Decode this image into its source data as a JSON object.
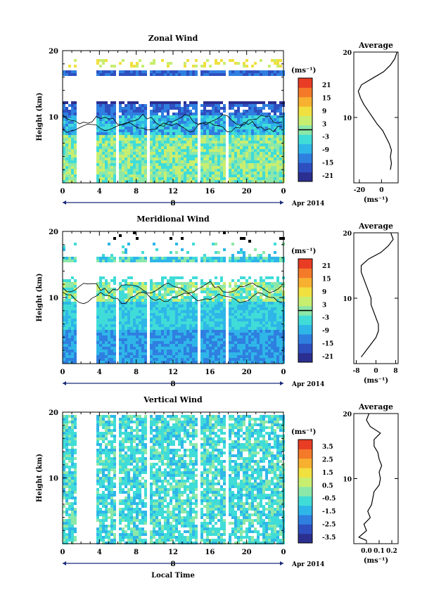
{
  "chart_data": [
    {
      "type": "heatmap",
      "title": "Zonal Wind",
      "ylabel": "Height (km)",
      "ylim": [
        0,
        20
      ],
      "yticks": [
        {
          "v": 10,
          "label": "10"
        },
        {
          "v": 20,
          "label": "20"
        }
      ],
      "xlim": [
        0,
        24
      ],
      "xticks": [
        "0",
        "4",
        "8",
        "12",
        "16",
        "20",
        "0"
      ],
      "date_day": "8",
      "date_label": "Apr 2014",
      "colorbar": {
        "unit": "(ms⁻¹)",
        "range": [
          -24,
          24
        ],
        "ticks": [
          "21",
          "15",
          "9",
          "3",
          "-3",
          "-9",
          "-15",
          "-21"
        ],
        "contour_value": 0
      },
      "average": {
        "title": "Average",
        "xlabel": "(ms⁻¹)",
        "xlim": [
          -25,
          15
        ],
        "xticks": [
          "-20",
          "0"
        ],
        "xtick_values": [
          -20,
          0
        ],
        "yticks": [
          "10",
          "20"
        ],
        "profile": [
          {
            "h": 2,
            "v": 8
          },
          {
            "h": 3,
            "v": 9
          },
          {
            "h": 4,
            "v": 8
          },
          {
            "h": 5,
            "v": 9
          },
          {
            "h": 6,
            "v": 7
          },
          {
            "h": 7,
            "v": 4
          },
          {
            "h": 8,
            "v": 1
          },
          {
            "h": 9,
            "v": -4
          },
          {
            "h": 10,
            "v": -8
          },
          {
            "h": 11,
            "v": -12
          },
          {
            "h": 12,
            "v": -16
          },
          {
            "h": 13,
            "v": -19
          },
          {
            "h": 14,
            "v": -21
          },
          {
            "h": 15,
            "v": -18
          },
          {
            "h": 16,
            "v": -8
          },
          {
            "h": 17,
            "v": 2
          },
          {
            "h": 18,
            "v": 8
          },
          {
            "h": 19,
            "v": 12
          },
          {
            "h": 20,
            "v": 14
          }
        ]
      }
    },
    {
      "type": "heatmap",
      "title": "Meridional Wind",
      "ylabel": "Height (km)",
      "ylim": [
        0,
        20
      ],
      "yticks": [
        {
          "v": 10,
          "label": "10"
        },
        {
          "v": 20,
          "label": "20"
        }
      ],
      "xlim": [
        0,
        24
      ],
      "xticks": [
        "0",
        "4",
        "8",
        "12",
        "16",
        "20",
        "0"
      ],
      "date_day": "8",
      "date_label": "Apr 2014",
      "colorbar": {
        "unit": "(ms⁻¹)",
        "range": [
          -24,
          24
        ],
        "ticks": [
          "21",
          "15",
          "9",
          "3",
          "-3",
          "-9",
          "-15",
          "-21"
        ],
        "contour_value": 0
      },
      "average": {
        "title": "Average",
        "xlabel": "(ms⁻¹)",
        "xlim": [
          -9,
          9
        ],
        "xticks": [
          "-8",
          "0",
          "8"
        ],
        "xtick_values": [
          -8,
          0,
          8
        ],
        "yticks": [
          "10",
          "20"
        ],
        "profile": [
          {
            "h": 1,
            "v": -6
          },
          {
            "h": 2,
            "v": -4
          },
          {
            "h": 3,
            "v": -2
          },
          {
            "h": 4,
            "v": 0
          },
          {
            "h": 5,
            "v": 1
          },
          {
            "h": 6,
            "v": 1
          },
          {
            "h": 7,
            "v": 0
          },
          {
            "h": 8,
            "v": -1
          },
          {
            "h": 9,
            "v": -2
          },
          {
            "h": 10,
            "v": -2
          },
          {
            "h": 11,
            "v": -3
          },
          {
            "h": 12,
            "v": -4
          },
          {
            "h": 13,
            "v": -5
          },
          {
            "h": 14,
            "v": -6
          },
          {
            "h": 15,
            "v": -6
          },
          {
            "h": 16,
            "v": -3
          },
          {
            "h": 17,
            "v": 2
          },
          {
            "h": 18,
            "v": 5
          },
          {
            "h": 19,
            "v": 7
          },
          {
            "h": 20,
            "v": 6
          }
        ]
      }
    },
    {
      "type": "heatmap",
      "title": "Vertical Wind",
      "ylabel": "Height (km)",
      "xlabel": "Local Time",
      "ylim": [
        0,
        20
      ],
      "yticks": [
        {
          "v": 10,
          "label": "10"
        },
        {
          "v": 20,
          "label": "20"
        }
      ],
      "xlim": [
        0,
        24
      ],
      "xticks": [
        "0",
        "4",
        "8",
        "12",
        "16",
        "20",
        "0"
      ],
      "date_day": "8",
      "date_label": "Apr 2014",
      "colorbar": {
        "unit": "(ms⁻¹)",
        "range": [
          -4,
          4
        ],
        "ticks": [
          "3.5",
          "2.5",
          "1.5",
          "0.5",
          "-0.5",
          "-1.5",
          "-2.5",
          "-3.5"
        ]
      },
      "average": {
        "title": "Average",
        "xlabel": "(ms⁻¹)",
        "xlim": [
          -0.1,
          0.25
        ],
        "xticks": [
          "0.0",
          "0.1",
          "0.2"
        ],
        "xtick_values": [
          0.0,
          0.1,
          0.2
        ],
        "yticks": [
          "10",
          "20"
        ],
        "profile": [
          {
            "h": 0.5,
            "v": 0.0
          },
          {
            "h": 1,
            "v": -0.06
          },
          {
            "h": 2,
            "v": 0.0
          },
          {
            "h": 3,
            "v": -0.02
          },
          {
            "h": 4,
            "v": 0.03
          },
          {
            "h": 5,
            "v": 0.01
          },
          {
            "h": 6,
            "v": 0.04
          },
          {
            "h": 7,
            "v": 0.05
          },
          {
            "h": 8,
            "v": 0.06
          },
          {
            "h": 9,
            "v": 0.1
          },
          {
            "h": 10,
            "v": 0.11
          },
          {
            "h": 11,
            "v": 0.1
          },
          {
            "h": 12,
            "v": 0.12
          },
          {
            "h": 13,
            "v": 0.1
          },
          {
            "h": 14,
            "v": 0.09
          },
          {
            "h": 15,
            "v": 0.06
          },
          {
            "h": 16,
            "v": 0.06
          },
          {
            "h": 17,
            "v": 0.11
          },
          {
            "h": 18,
            "v": 0.03
          },
          {
            "h": 19,
            "v": 0.0
          },
          {
            "h": 20,
            "v": 0.02
          }
        ]
      }
    }
  ],
  "colors": {
    "scale": [
      "#2b2f8f",
      "#2e4fc0",
      "#2f7fe0",
      "#2fb6e8",
      "#40dcd8",
      "#8ce8a8",
      "#c8ee70",
      "#f0e040",
      "#f7b030",
      "#f47a2a",
      "#e83c24"
    ]
  }
}
